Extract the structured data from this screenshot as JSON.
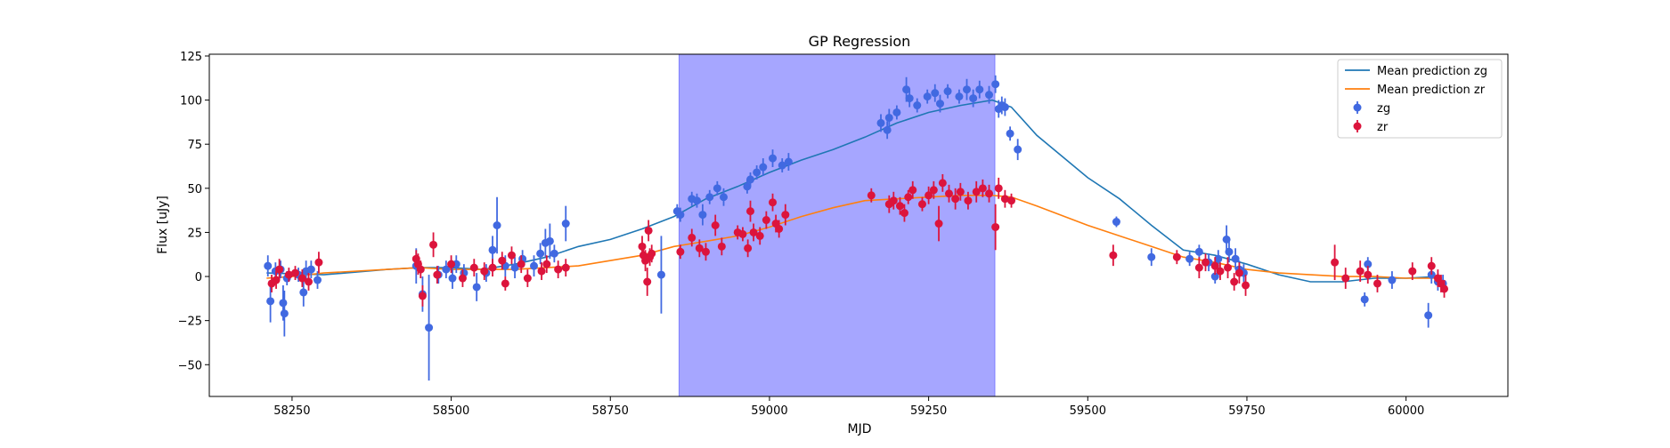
{
  "chart_data": {
    "type": "scatter",
    "title": "GP Regression",
    "xlabel": "MJD",
    "ylabel": "Flux [uJy]",
    "xlim": [
      58120,
      60160
    ],
    "ylim": [
      -68,
      126
    ],
    "x_ticks": [
      58250,
      58500,
      58750,
      59000,
      59250,
      59500,
      59750,
      60000
    ],
    "y_ticks": [
      -50,
      -25,
      0,
      25,
      50,
      75,
      100,
      125
    ],
    "shaded_region": {
      "x": [
        58858,
        59354
      ],
      "color": "#a6a6ff"
    },
    "legend_position": "upper right",
    "legend": [
      {
        "label": "Mean prediction zg",
        "kind": "line",
        "color": "#1f77b4"
      },
      {
        "label": "Mean prediction zr",
        "kind": "line",
        "color": "#ff7f0e"
      },
      {
        "label": "zg",
        "kind": "errorbar",
        "color": "#4169e1"
      },
      {
        "label": "zr",
        "kind": "errorbar",
        "color": "#dc143c"
      }
    ],
    "series": [
      {
        "name": "Mean prediction zg",
        "type": "line",
        "color": "#1f77b4",
        "points": [
          [
            58210,
            2
          ],
          [
            58300,
            1
          ],
          [
            58400,
            4
          ],
          [
            58450,
            5
          ],
          [
            58500,
            5
          ],
          [
            58550,
            4
          ],
          [
            58600,
            7
          ],
          [
            58650,
            11
          ],
          [
            58700,
            17
          ],
          [
            58750,
            21
          ],
          [
            58800,
            27
          ],
          [
            58850,
            34
          ],
          [
            58900,
            44
          ],
          [
            58950,
            51
          ],
          [
            59000,
            59
          ],
          [
            59050,
            66
          ],
          [
            59100,
            72
          ],
          [
            59150,
            79
          ],
          [
            59200,
            87
          ],
          [
            59250,
            93
          ],
          [
            59300,
            97
          ],
          [
            59350,
            100
          ],
          [
            59380,
            96
          ],
          [
            59420,
            80
          ],
          [
            59500,
            56
          ],
          [
            59550,
            44
          ],
          [
            59600,
            29
          ],
          [
            59650,
            15
          ],
          [
            59700,
            12
          ],
          [
            59750,
            7
          ],
          [
            59800,
            1
          ],
          [
            59850,
            -3
          ],
          [
            59900,
            -3
          ],
          [
            59950,
            -1
          ],
          [
            60000,
            -1
          ],
          [
            60050,
            0
          ]
        ]
      },
      {
        "name": "Mean prediction zr",
        "type": "line",
        "color": "#ff7f0e",
        "points": [
          [
            58210,
            -1
          ],
          [
            58250,
            0
          ],
          [
            58300,
            2
          ],
          [
            58400,
            4
          ],
          [
            58450,
            5
          ],
          [
            58500,
            4
          ],
          [
            58550,
            4
          ],
          [
            58600,
            4
          ],
          [
            58700,
            6
          ],
          [
            58800,
            12
          ],
          [
            58850,
            17
          ],
          [
            58900,
            20
          ],
          [
            58950,
            23
          ],
          [
            59000,
            28
          ],
          [
            59050,
            34
          ],
          [
            59100,
            39
          ],
          [
            59150,
            43
          ],
          [
            59200,
            44
          ],
          [
            59250,
            45
          ],
          [
            59300,
            46
          ],
          [
            59350,
            46
          ],
          [
            59380,
            45
          ],
          [
            59420,
            40
          ],
          [
            59500,
            29
          ],
          [
            59600,
            17
          ],
          [
            59650,
            11
          ],
          [
            59700,
            8
          ],
          [
            59750,
            4
          ],
          [
            59800,
            2
          ],
          [
            59850,
            1
          ],
          [
            59900,
            0
          ],
          [
            59950,
            0
          ],
          [
            60000,
            -1
          ],
          [
            60050,
            -1
          ]
        ]
      },
      {
        "name": "zg",
        "type": "errorbar",
        "color": "#4169e1",
        "points": [
          [
            58212,
            6,
            6
          ],
          [
            58216,
            -14,
            12
          ],
          [
            58224,
            3,
            5
          ],
          [
            58232,
            4,
            5
          ],
          [
            58236,
            -15,
            10
          ],
          [
            58238,
            -21,
            13
          ],
          [
            58242,
            -1,
            4
          ],
          [
            58260,
            1,
            4
          ],
          [
            58268,
            -9,
            8
          ],
          [
            58272,
            3,
            6
          ],
          [
            58280,
            4,
            5
          ],
          [
            58290,
            -2,
            5
          ],
          [
            58445,
            6,
            10
          ],
          [
            58455,
            -10,
            10
          ],
          [
            58465,
            -29,
            30
          ],
          [
            58480,
            1,
            5
          ],
          [
            58492,
            4,
            5
          ],
          [
            58502,
            -1,
            6
          ],
          [
            58508,
            7,
            5
          ],
          [
            58520,
            2,
            5
          ],
          [
            58540,
            -6,
            8
          ],
          [
            58555,
            2,
            5
          ],
          [
            58565,
            15,
            8
          ],
          [
            58572,
            29,
            16
          ],
          [
            58585,
            6,
            6
          ],
          [
            58600,
            5,
            6
          ],
          [
            58612,
            10,
            5
          ],
          [
            58630,
            6,
            6
          ],
          [
            58640,
            13,
            6
          ],
          [
            58648,
            19,
            8
          ],
          [
            58655,
            20,
            10
          ],
          [
            58662,
            13,
            5
          ],
          [
            58680,
            30,
            10
          ],
          [
            58830,
            1,
            22
          ],
          [
            58855,
            37,
            4
          ],
          [
            58860,
            35,
            4
          ],
          [
            58878,
            44,
            4
          ],
          [
            58886,
            43,
            4
          ],
          [
            58895,
            35,
            6
          ],
          [
            58906,
            45,
            4
          ],
          [
            58918,
            50,
            4
          ],
          [
            58928,
            45,
            5
          ],
          [
            58965,
            51,
            4
          ],
          [
            58970,
            55,
            4
          ],
          [
            58980,
            59,
            4
          ],
          [
            58990,
            62,
            5
          ],
          [
            59005,
            67,
            5
          ],
          [
            59020,
            63,
            4
          ],
          [
            59030,
            65,
            5
          ],
          [
            59175,
            87,
            5
          ],
          [
            59185,
            83,
            5
          ],
          [
            59188,
            90,
            5
          ],
          [
            59200,
            93,
            4
          ],
          [
            59215,
            106,
            7
          ],
          [
            59220,
            101,
            5
          ],
          [
            59232,
            97,
            4
          ],
          [
            59248,
            102,
            4
          ],
          [
            59260,
            104,
            5
          ],
          [
            59268,
            98,
            5
          ],
          [
            59280,
            105,
            4
          ],
          [
            59298,
            102,
            4
          ],
          [
            59310,
            106,
            6
          ],
          [
            59320,
            101,
            5
          ],
          [
            59330,
            106,
            5
          ],
          [
            59345,
            103,
            5
          ],
          [
            59355,
            109,
            5
          ],
          [
            59360,
            95,
            5
          ],
          [
            59365,
            97,
            5
          ],
          [
            59370,
            96,
            5
          ],
          [
            59378,
            81,
            4
          ],
          [
            59390,
            72,
            6
          ],
          [
            59545,
            31,
            3
          ],
          [
            59600,
            11,
            5
          ],
          [
            59660,
            10,
            4
          ],
          [
            59675,
            14,
            4
          ],
          [
            59690,
            8,
            5
          ],
          [
            59700,
            0,
            4
          ],
          [
            59705,
            10,
            5
          ],
          [
            59718,
            21,
            8
          ],
          [
            59722,
            14,
            6
          ],
          [
            59732,
            10,
            6
          ],
          [
            59738,
            4,
            5
          ],
          [
            59745,
            2,
            5
          ],
          [
            59935,
            -13,
            4
          ],
          [
            59940,
            7,
            4
          ],
          [
            59978,
            -2,
            5
          ],
          [
            60035,
            -22,
            7
          ],
          [
            60040,
            1,
            5
          ],
          [
            60050,
            -3,
            5
          ],
          [
            60058,
            -4,
            5
          ]
        ]
      },
      {
        "name": "zr",
        "type": "errorbar",
        "color": "#dc143c",
        "points": [
          [
            58218,
            -4,
            5
          ],
          [
            58225,
            -2,
            5
          ],
          [
            58230,
            4,
            6
          ],
          [
            58245,
            1,
            4
          ],
          [
            58255,
            2,
            4
          ],
          [
            58266,
            -1,
            5
          ],
          [
            58276,
            -3,
            5
          ],
          [
            58292,
            8,
            6
          ],
          [
            58445,
            10,
            5
          ],
          [
            58448,
            7,
            6
          ],
          [
            58452,
            4,
            5
          ],
          [
            58455,
            -11,
            6
          ],
          [
            58472,
            18,
            7
          ],
          [
            58478,
            1,
            5
          ],
          [
            58500,
            7,
            5
          ],
          [
            58518,
            -1,
            5
          ],
          [
            58536,
            5,
            5
          ],
          [
            58552,
            3,
            5
          ],
          [
            58565,
            5,
            5
          ],
          [
            58580,
            9,
            5
          ],
          [
            58585,
            -4,
            4
          ],
          [
            58595,
            12,
            5
          ],
          [
            58610,
            7,
            5
          ],
          [
            58620,
            -1,
            5
          ],
          [
            58642,
            3,
            5
          ],
          [
            58650,
            7,
            5
          ],
          [
            58668,
            4,
            5
          ],
          [
            58680,
            5,
            5
          ],
          [
            58800,
            17,
            6
          ],
          [
            58802,
            12,
            5
          ],
          [
            58805,
            9,
            6
          ],
          [
            58808,
            -3,
            8
          ],
          [
            58810,
            26,
            6
          ],
          [
            58812,
            11,
            5
          ],
          [
            58815,
            13,
            5
          ],
          [
            58860,
            14,
            4
          ],
          [
            58878,
            22,
            5
          ],
          [
            58890,
            16,
            5
          ],
          [
            58900,
            14,
            5
          ],
          [
            58915,
            29,
            6
          ],
          [
            58925,
            17,
            5
          ],
          [
            58950,
            25,
            4
          ],
          [
            58958,
            24,
            4
          ],
          [
            58966,
            16,
            5
          ],
          [
            58970,
            37,
            6
          ],
          [
            58975,
            25,
            5
          ],
          [
            58985,
            23,
            5
          ],
          [
            58995,
            32,
            5
          ],
          [
            59005,
            42,
            5
          ],
          [
            59010,
            30,
            5
          ],
          [
            59015,
            27,
            5
          ],
          [
            59025,
            35,
            6
          ],
          [
            59160,
            46,
            4
          ],
          [
            59188,
            41,
            5
          ],
          [
            59195,
            43,
            5
          ],
          [
            59205,
            40,
            5
          ],
          [
            59212,
            36,
            5
          ],
          [
            59218,
            45,
            4
          ],
          [
            59225,
            49,
            5
          ],
          [
            59240,
            41,
            4
          ],
          [
            59250,
            46,
            5
          ],
          [
            59258,
            49,
            5
          ],
          [
            59266,
            30,
            10
          ],
          [
            59272,
            53,
            5
          ],
          [
            59282,
            47,
            5
          ],
          [
            59292,
            44,
            6
          ],
          [
            59300,
            48,
            5
          ],
          [
            59312,
            43,
            5
          ],
          [
            59325,
            48,
            6
          ],
          [
            59335,
            50,
            5
          ],
          [
            59345,
            47,
            5
          ],
          [
            59355,
            28,
            13
          ],
          [
            59360,
            50,
            6
          ],
          [
            59370,
            44,
            5
          ],
          [
            59380,
            43,
            4
          ],
          [
            59540,
            12,
            6
          ],
          [
            59640,
            11,
            4
          ],
          [
            59675,
            5,
            6
          ],
          [
            59685,
            8,
            5
          ],
          [
            59700,
            6,
            5
          ],
          [
            59708,
            3,
            5
          ],
          [
            59720,
            5,
            6
          ],
          [
            59730,
            -3,
            5
          ],
          [
            59738,
            2,
            6
          ],
          [
            59748,
            -5,
            6
          ],
          [
            59888,
            8,
            10
          ],
          [
            59905,
            -1,
            6
          ],
          [
            59928,
            3,
            6
          ],
          [
            59940,
            1,
            5
          ],
          [
            59955,
            -4,
            5
          ],
          [
            60010,
            3,
            5
          ],
          [
            60040,
            6,
            5
          ],
          [
            60050,
            -1,
            5
          ],
          [
            60055,
            -4,
            5
          ],
          [
            60060,
            -7,
            5
          ]
        ]
      }
    ]
  }
}
